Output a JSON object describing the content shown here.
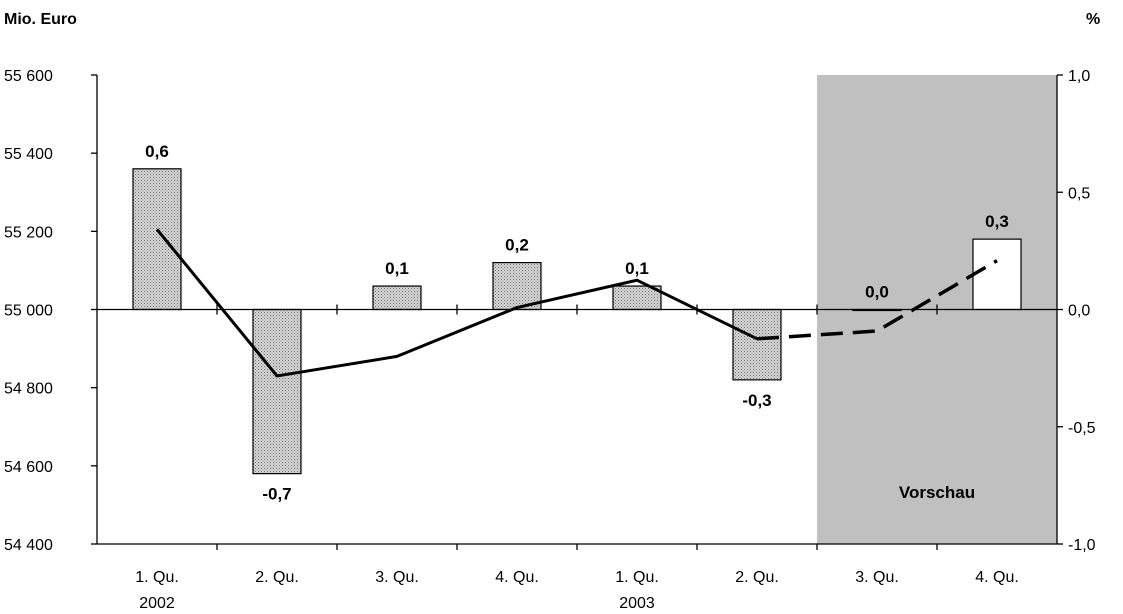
{
  "colors": {
    "forecast_background": "#c0c0c0",
    "actual_bar_fill": "#b8b8b8",
    "forecast_bar_fill": "#ffffff",
    "line": "#000000"
  },
  "chart_data": {
    "type": "bar",
    "left_axis_title": "Mio. Euro",
    "right_axis_title": "%",
    "left_ylim": [
      54400,
      55600
    ],
    "left_ticks": [
      55600,
      55400,
      55200,
      55000,
      54800,
      54600,
      54400
    ],
    "left_tick_labels": [
      "55 600",
      "55 400",
      "55 200",
      "55 000",
      "54 800",
      "54 600",
      "54 400"
    ],
    "right_ylim": [
      -1.0,
      1.0
    ],
    "right_ticks": [
      1.0,
      0.5,
      0.0,
      -0.5,
      -1.0
    ],
    "right_tick_labels": [
      "1,0",
      "0,5",
      "0,0",
      "-0,5",
      "-1,0"
    ],
    "categories": [
      "1. Qu.",
      "2. Qu.",
      "3. Qu.",
      "4. Qu.",
      "1. Qu.",
      "2. Qu.",
      "3. Qu.",
      "4. Qu."
    ],
    "year_labels": [
      {
        "category_index": 0,
        "text": "2002"
      },
      {
        "category_index": 4,
        "text": "2003"
      }
    ],
    "forecast_start_index": 6,
    "forecast_label": "Vorschau",
    "series": [
      {
        "kind": "bar",
        "axis": "right",
        "values": [
          0.6,
          -0.7,
          0.1,
          0.2,
          0.1,
          -0.3,
          0.0,
          0.3
        ],
        "labels": [
          "0,6",
          "-0,7",
          "0,1",
          "0,2",
          "0,1",
          "-0,3",
          "0,0",
          "0,3"
        ]
      },
      {
        "kind": "line",
        "axis": "left",
        "values": [
          55205,
          54830,
          54880,
          55005,
          55075,
          54925,
          54945,
          55125
        ],
        "solid_until_index": 5
      }
    ],
    "grid": false
  }
}
